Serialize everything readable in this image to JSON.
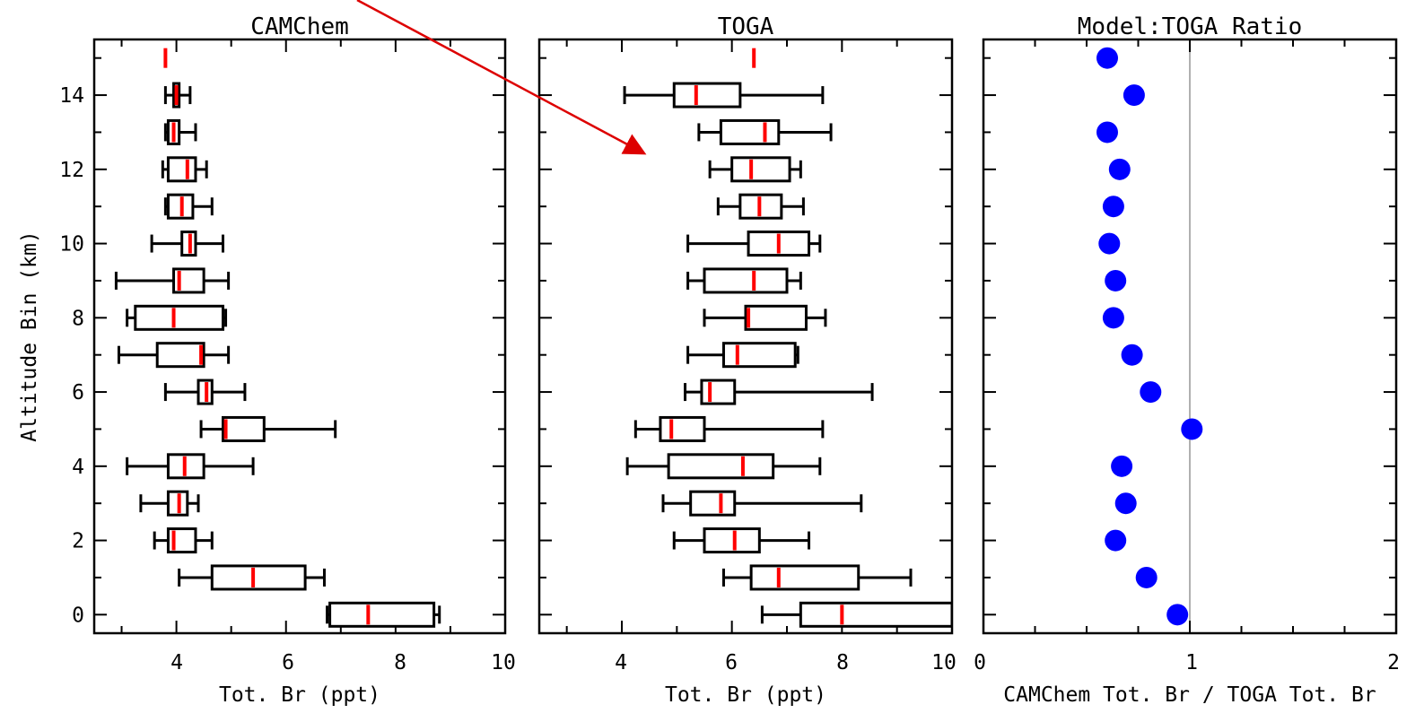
{
  "chart_data": [
    {
      "type": "boxplot",
      "title": "CAMChem",
      "xlabel": "Tot. Br (ppt)",
      "ylabel": "Altitude Bin (km)",
      "xlim": [
        2.5,
        10
      ],
      "ylim": [
        -0.5,
        15.5
      ],
      "xticks": [
        "4",
        "6",
        "8",
        "10"
      ],
      "yticks": [
        "0",
        "2",
        "4",
        "6",
        "8",
        "10",
        "12",
        "14"
      ],
      "extra_median": {
        "altitude": 15,
        "value": 3.8
      },
      "boxes": [
        {
          "altitude": 0,
          "whisker_low": 6.75,
          "q1": 6.8,
          "median": 7.5,
          "q3": 8.7,
          "whisker_high": 8.8
        },
        {
          "altitude": 1,
          "whisker_low": 4.05,
          "q1": 4.65,
          "median": 5.4,
          "q3": 6.35,
          "whisker_high": 6.7
        },
        {
          "altitude": 2,
          "whisker_low": 3.6,
          "q1": 3.85,
          "median": 3.95,
          "q3": 4.35,
          "whisker_high": 4.65
        },
        {
          "altitude": 3,
          "whisker_low": 3.35,
          "q1": 3.85,
          "median": 4.05,
          "q3": 4.2,
          "whisker_high": 4.4
        },
        {
          "altitude": 4,
          "whisker_low": 3.1,
          "q1": 3.85,
          "median": 4.15,
          "q3": 4.5,
          "whisker_high": 5.4
        },
        {
          "altitude": 5,
          "whisker_low": 4.45,
          "q1": 4.85,
          "median": 4.9,
          "q3": 5.6,
          "whisker_high": 6.9
        },
        {
          "altitude": 6,
          "whisker_low": 3.8,
          "q1": 4.4,
          "median": 4.55,
          "q3": 4.65,
          "whisker_high": 5.25
        },
        {
          "altitude": 7,
          "whisker_low": 2.95,
          "q1": 3.65,
          "median": 4.45,
          "q3": 4.5,
          "whisker_high": 4.95
        },
        {
          "altitude": 8,
          "whisker_low": 3.1,
          "q1": 3.25,
          "median": 3.95,
          "q3": 4.85,
          "whisker_high": 4.9
        },
        {
          "altitude": 9,
          "whisker_low": 2.9,
          "q1": 3.95,
          "median": 4.05,
          "q3": 4.5,
          "whisker_high": 4.95
        },
        {
          "altitude": 10,
          "whisker_low": 3.55,
          "q1": 4.1,
          "median": 4.25,
          "q3": 4.35,
          "whisker_high": 4.85
        },
        {
          "altitude": 11,
          "whisker_low": 3.8,
          "q1": 3.85,
          "median": 4.1,
          "q3": 4.3,
          "whisker_high": 4.65
        },
        {
          "altitude": 12,
          "whisker_low": 3.75,
          "q1": 3.85,
          "median": 4.2,
          "q3": 4.35,
          "whisker_high": 4.55
        },
        {
          "altitude": 13,
          "whisker_low": 3.8,
          "q1": 3.85,
          "median": 3.95,
          "q3": 4.05,
          "whisker_high": 4.35
        },
        {
          "altitude": 14,
          "whisker_low": 3.8,
          "q1": 3.95,
          "median": 4.0,
          "q3": 4.05,
          "whisker_high": 4.25
        }
      ]
    },
    {
      "type": "boxplot",
      "title": "TOGA",
      "xlabel": "Tot. Br (ppt)",
      "ylabel": "",
      "xlim": [
        2.5,
        10
      ],
      "ylim": [
        -0.5,
        15.5
      ],
      "xticks": [
        "4",
        "6",
        "8",
        "10"
      ],
      "yticks": [],
      "extra_median": {
        "altitude": 15,
        "value": 6.4
      },
      "boxes": [
        {
          "altitude": 0,
          "whisker_low": 6.55,
          "q1": 7.25,
          "median": 8.0,
          "q3": 10.0,
          "whisker_high": 10.0
        },
        {
          "altitude": 1,
          "whisker_low": 5.85,
          "q1": 6.35,
          "median": 6.85,
          "q3": 8.3,
          "whisker_high": 9.25
        },
        {
          "altitude": 2,
          "whisker_low": 4.95,
          "q1": 5.5,
          "median": 6.05,
          "q3": 6.5,
          "whisker_high": 7.4
        },
        {
          "altitude": 3,
          "whisker_low": 4.75,
          "q1": 5.25,
          "median": 5.8,
          "q3": 6.05,
          "whisker_high": 8.35
        },
        {
          "altitude": 4,
          "whisker_low": 4.1,
          "q1": 4.85,
          "median": 6.2,
          "q3": 6.75,
          "whisker_high": 7.6
        },
        {
          "altitude": 5,
          "whisker_low": 4.25,
          "q1": 4.7,
          "median": 4.9,
          "q3": 5.5,
          "whisker_high": 7.65
        },
        {
          "altitude": 6,
          "whisker_low": 5.15,
          "q1": 5.45,
          "median": 5.6,
          "q3": 6.05,
          "whisker_high": 8.55
        },
        {
          "altitude": 7,
          "whisker_low": 5.2,
          "q1": 5.85,
          "median": 6.1,
          "q3": 7.15,
          "whisker_high": 7.2
        },
        {
          "altitude": 8,
          "whisker_low": 5.5,
          "q1": 6.25,
          "median": 6.3,
          "q3": 7.35,
          "whisker_high": 7.7
        },
        {
          "altitude": 9,
          "whisker_low": 5.2,
          "q1": 5.5,
          "median": 6.4,
          "q3": 7.0,
          "whisker_high": 7.25
        },
        {
          "altitude": 10,
          "whisker_low": 5.2,
          "q1": 6.3,
          "median": 6.85,
          "q3": 7.4,
          "whisker_high": 7.6
        },
        {
          "altitude": 11,
          "whisker_low": 5.75,
          "q1": 6.15,
          "median": 6.5,
          "q3": 6.9,
          "whisker_high": 7.3
        },
        {
          "altitude": 12,
          "whisker_low": 5.6,
          "q1": 6.0,
          "median": 6.35,
          "q3": 7.05,
          "whisker_high": 7.25
        },
        {
          "altitude": 13,
          "whisker_low": 5.4,
          "q1": 5.8,
          "median": 6.6,
          "q3": 6.85,
          "whisker_high": 7.8
        },
        {
          "altitude": 14,
          "whisker_low": 4.05,
          "q1": 4.95,
          "median": 5.35,
          "q3": 6.15,
          "whisker_high": 7.65
        }
      ]
    },
    {
      "type": "scatter",
      "title": "Model:TOGA Ratio",
      "xlabel": "CAMChem Tot. Br / TOGA Tot. Br",
      "ylabel": "",
      "xlim": [
        0,
        2
      ],
      "ylim": [
        -0.5,
        15.5
      ],
      "xticks": [
        "0",
        "1",
        "2"
      ],
      "yticks": [],
      "reference_line_x": 1,
      "points": [
        {
          "altitude": 0,
          "ratio": 0.94
        },
        {
          "altitude": 1,
          "ratio": 0.79
        },
        {
          "altitude": 2,
          "ratio": 0.64
        },
        {
          "altitude": 3,
          "ratio": 0.69
        },
        {
          "altitude": 4,
          "ratio": 0.67
        },
        {
          "altitude": 5,
          "ratio": 1.01
        },
        {
          "altitude": 6,
          "ratio": 0.81
        },
        {
          "altitude": 7,
          "ratio": 0.72
        },
        {
          "altitude": 8,
          "ratio": 0.63
        },
        {
          "altitude": 9,
          "ratio": 0.64
        },
        {
          "altitude": 10,
          "ratio": 0.61
        },
        {
          "altitude": 11,
          "ratio": 0.63
        },
        {
          "altitude": 12,
          "ratio": 0.66
        },
        {
          "altitude": 13,
          "ratio": 0.6
        },
        {
          "altitude": 14,
          "ratio": 0.73
        },
        {
          "altitude": 15,
          "ratio": 0.6
        }
      ]
    }
  ],
  "colors": {
    "median": "#ff0000",
    "points": "#0000ff",
    "axes": "#000000",
    "reference_line": "#b0b0b0",
    "annotation_arrow": "#dd0000"
  }
}
